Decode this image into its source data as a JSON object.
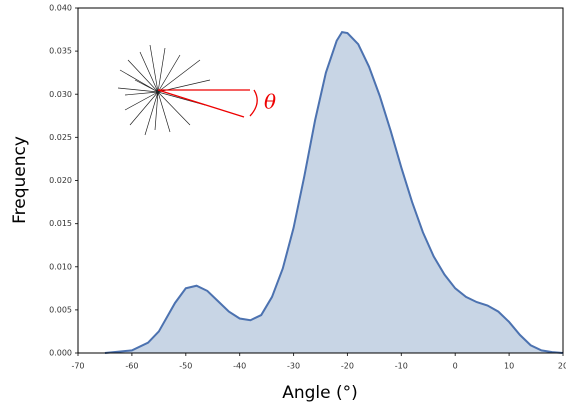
{
  "chart_data": {
    "type": "area",
    "x_label": "Angle (°)",
    "y_label": "Frequency",
    "annotation": "θ",
    "x": [
      -65,
      -60,
      -57,
      -55,
      -52,
      -50,
      -48,
      -46,
      -44,
      -42,
      -40,
      -38,
      -36,
      -34,
      -32,
      -30,
      -28,
      -26,
      -24,
      -22,
      -21,
      -20,
      -18,
      -16,
      -14,
      -12,
      -10,
      -8,
      -6,
      -4,
      -2,
      0,
      2,
      4,
      6,
      8,
      10,
      12,
      14,
      16,
      18,
      20
    ],
    "values": [
      0,
      0.0003,
      0.0012,
      0.0025,
      0.0058,
      0.0075,
      0.0078,
      0.0072,
      0.006,
      0.0048,
      0.004,
      0.0038,
      0.0044,
      0.0065,
      0.0098,
      0.0145,
      0.0205,
      0.027,
      0.0325,
      0.0362,
      0.0372,
      0.0371,
      0.0358,
      0.0332,
      0.0298,
      0.0258,
      0.0215,
      0.0175,
      0.014,
      0.0112,
      0.0091,
      0.0075,
      0.0065,
      0.0059,
      0.0055,
      0.0048,
      0.0036,
      0.0021,
      0.0009,
      0.0003,
      0.0001,
      0
    ],
    "color": "#4c72b0",
    "fill": "#c8d5e5",
    "xlim": [
      -70,
      20
    ],
    "xticks": [
      -70,
      -60,
      -50,
      -40,
      -30,
      -20,
      -10,
      0,
      10,
      20
    ],
    "ylim": [
      0,
      0.04
    ],
    "yticks": [
      {
        "value": 0,
        "label": "0.000"
      },
      {
        "value": 0.005,
        "label": "0.005"
      },
      {
        "value": 0.01,
        "label": "0.010"
      },
      {
        "value": 0.015,
        "label": "0.015"
      },
      {
        "value": 0.02,
        "label": "0.020"
      },
      {
        "value": 0.025,
        "label": "0.025"
      },
      {
        "value": 0.03,
        "label": "0.030"
      },
      {
        "value": 0.035,
        "label": "0.035"
      },
      {
        "value": 0.04,
        "label": "0.040"
      }
    ]
  }
}
